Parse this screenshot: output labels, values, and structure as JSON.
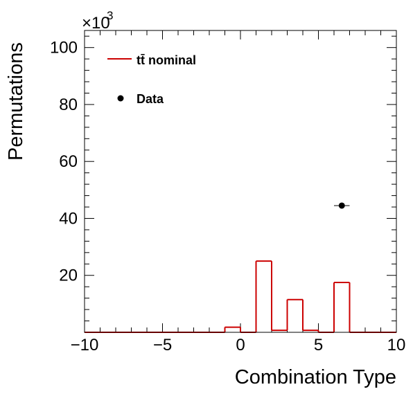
{
  "chart_data": {
    "type": "histogram",
    "xlabel": "Combination Type",
    "ylabel": "Permutations",
    "y_multiplier_label": "×10",
    "y_multiplier_exponent": "3",
    "xlim": [
      -10,
      10
    ],
    "ylim": [
      0,
      106
    ],
    "x_ticks": [
      -10,
      -5,
      0,
      5,
      10
    ],
    "y_ticks": [
      20,
      40,
      60,
      80,
      100
    ],
    "bin_width": 1,
    "legend": {
      "position": "top-left",
      "entries": [
        {
          "label": "tt̄ nominal",
          "kind": "line"
        },
        {
          "label": "Data",
          "kind": "marker"
        }
      ]
    },
    "series": [
      {
        "name": "tt̄ nominal",
        "style": "step",
        "color": "#cc0000",
        "x": [
          -10,
          -9,
          -8,
          -7,
          -6,
          -5,
          -4,
          -3,
          -2,
          -1,
          0,
          1,
          2,
          3,
          4,
          5,
          6,
          7,
          8,
          9
        ],
        "values": [
          0,
          0,
          0,
          0,
          0,
          0,
          0,
          0,
          0,
          1.8,
          0,
          25.0,
          0.7,
          11.5,
          0.7,
          0,
          17.5,
          0,
          0,
          0
        ]
      },
      {
        "name": "Data",
        "style": "points",
        "color": "#000000",
        "points": [
          {
            "x": 6.5,
            "y": 44.5,
            "xerr": 0.5
          }
        ]
      }
    ]
  }
}
